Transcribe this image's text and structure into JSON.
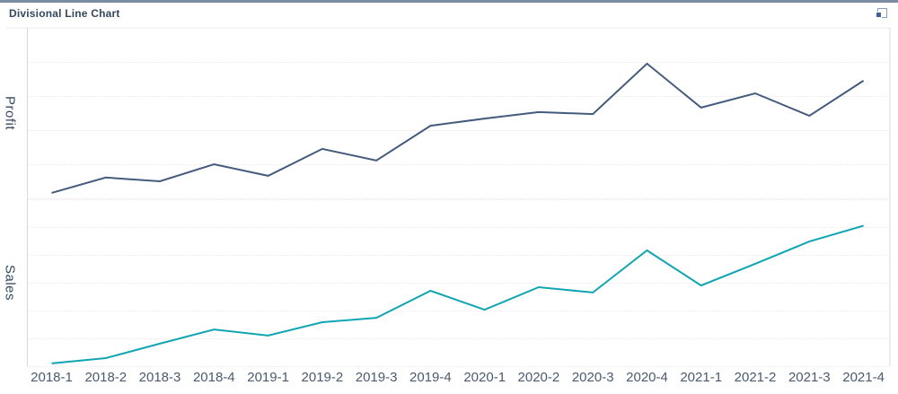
{
  "header": {
    "title": "Divisional Line Chart",
    "maximize_icon": "maximize",
    "accent_color": "#7b8ca4"
  },
  "chart_data": {
    "type": "line",
    "title": "Divisional Line Chart",
    "legend": "none",
    "grid": "horizontal-dotted",
    "x_categories": [
      "2018-1",
      "2018-2",
      "2018-3",
      "2018-4",
      "2019-1",
      "2019-2",
      "2019-3",
      "2019-4",
      "2020-1",
      "2020-2",
      "2020-3",
      "2020-4",
      "2021-1",
      "2021-2",
      "2021-3",
      "2021-4"
    ],
    "panels": [
      {
        "ylabel": "Profit",
        "ylim": [
          0,
          5
        ],
        "gridline_step": 1,
        "color": "#455b7d",
        "series": {
          "name": "Profit",
          "values": [
            0.16,
            0.61,
            0.5,
            1.0,
            0.66,
            1.45,
            1.11,
            2.13,
            2.34,
            2.53,
            2.47,
            3.95,
            2.66,
            3.08,
            2.42,
            3.45
          ]
        }
      },
      {
        "ylabel": "Sales",
        "ylim": [
          0,
          6
        ],
        "gridline_step": 1,
        "color": "#10a5b2",
        "series": {
          "name": "Sales",
          "values": [
            0.1,
            0.29,
            0.81,
            1.32,
            1.1,
            1.58,
            1.74,
            2.71,
            2.03,
            2.84,
            2.65,
            4.16,
            2.9,
            3.68,
            4.48,
            5.05
          ]
        }
      }
    ],
    "colors": {
      "gridline": "#e8dede",
      "axis": "#d9d9d9",
      "plot_top_border": "#ececec",
      "tick_label": "#4a5a6e"
    }
  }
}
